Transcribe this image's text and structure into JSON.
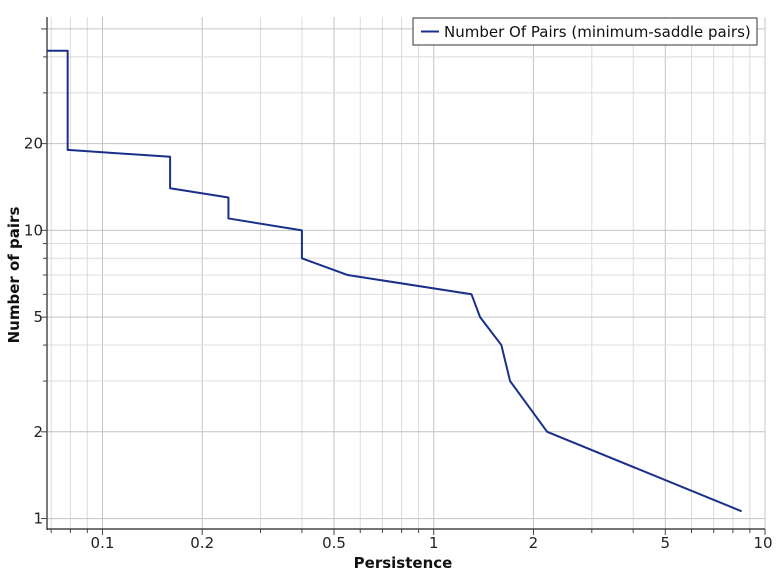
{
  "chart_data": {
    "type": "line",
    "xlabel": "Persistence",
    "ylabel": "Number of pairs",
    "xscale": "log",
    "yscale": "log",
    "xlim": [
      0.068,
      10
    ],
    "ylim": [
      0.92,
      55
    ],
    "grid": true,
    "legend_position": "top-right",
    "x_ticks": [
      {
        "value": 0.1,
        "label": "0.1"
      },
      {
        "value": 0.2,
        "label": "0.2"
      },
      {
        "value": 0.5,
        "label": "0.5"
      },
      {
        "value": 1,
        "label": "1"
      },
      {
        "value": 2,
        "label": "2"
      },
      {
        "value": 5,
        "label": "5"
      },
      {
        "value": 10,
        "label": "10"
      }
    ],
    "y_ticks": [
      {
        "value": 1,
        "label": "1"
      },
      {
        "value": 2,
        "label": "2"
      },
      {
        "value": 5,
        "label": "5"
      },
      {
        "value": 10,
        "label": "10"
      },
      {
        "value": 20,
        "label": "20"
      }
    ],
    "series": [
      {
        "name": "Number Of Pairs (minimum-saddle pairs)",
        "color": "#1a2f8c",
        "points": [
          [
            0.068,
            42
          ],
          [
            0.0785,
            42
          ],
          [
            0.0785,
            19
          ],
          [
            0.0795,
            19
          ],
          [
            0.16,
            18
          ],
          [
            0.16,
            14
          ],
          [
            0.24,
            13
          ],
          [
            0.24,
            11
          ],
          [
            0.4,
            10
          ],
          [
            0.4,
            8
          ],
          [
            0.55,
            7
          ],
          [
            1.3,
            6
          ],
          [
            1.38,
            5
          ],
          [
            1.6,
            4
          ],
          [
            1.7,
            3
          ],
          [
            2.2,
            2
          ],
          [
            8.5,
            1.06
          ]
        ]
      }
    ]
  },
  "legend": {
    "label": "Number Of Pairs (minimum-saddle pairs)"
  }
}
